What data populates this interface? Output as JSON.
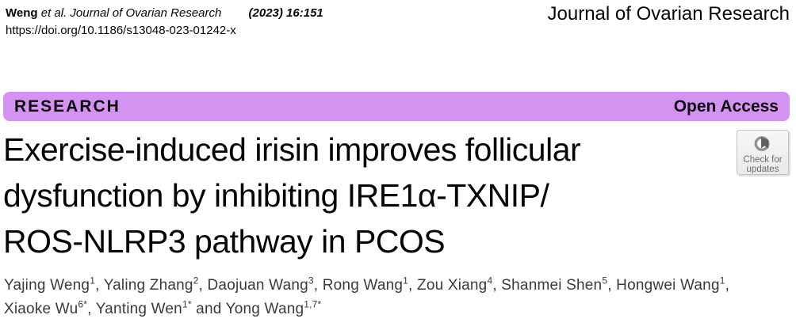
{
  "header": {
    "citation_name": "Weng",
    "citation_journal": "et al. Journal of Ovarian Research",
    "citation_volume": "(2023) 16:151",
    "doi": "https://doi.org/10.1186/s13048-023-01242-x",
    "journal_name": "Journal of Ovarian Research"
  },
  "banner": {
    "label": "RESEARCH",
    "access": "Open Access",
    "color": "#d593f1"
  },
  "title": {
    "lines": [
      "Exercise-induced irisin improves follicular",
      "dysfunction by inhibiting IRE1α-TXNIP/",
      "ROS-NLRP3 pathway in PCOS"
    ]
  },
  "authors": [
    {
      "name": "Yajing Weng",
      "sup": "1",
      "sep": ", "
    },
    {
      "name": "Yaling Zhang",
      "sup": "2",
      "sep": ", "
    },
    {
      "name": "Daojuan Wang",
      "sup": "3",
      "sep": ", "
    },
    {
      "name": "Rong Wang",
      "sup": "1",
      "sep": ", "
    },
    {
      "name": "Zou Xiang",
      "sup": "4",
      "sep": ", "
    },
    {
      "name": "Shanmei Shen",
      "sup": "5",
      "sep": ", "
    },
    {
      "name": "Hongwei Wang",
      "sup": "1",
      "sep": ", ",
      "break_after": true
    },
    {
      "name": "Xiaoke Wu",
      "sup": "6*",
      "sep": ", "
    },
    {
      "name": "Yanting Wen",
      "sup": "1*",
      "sep": " and "
    },
    {
      "name": "Yong Wang",
      "sup": "1,7*",
      "sep": ""
    }
  ],
  "badge": {
    "line1": "Check for",
    "line2": "updates",
    "icon_colors": {
      "ring": "#919191",
      "flag": "#606060"
    }
  }
}
